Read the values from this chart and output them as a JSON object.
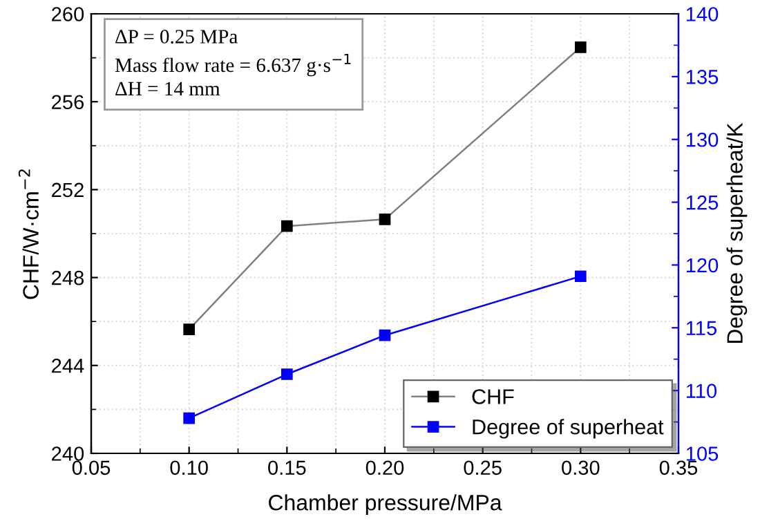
{
  "chart_data": {
    "type": "line",
    "xlabel": "Chamber pressure/MPa",
    "ylabel": "CHF/W·cm$^{−2}$",
    "y2label": "Degree of superheat/K",
    "x": [
      0.1,
      0.15,
      0.2,
      0.3
    ],
    "series": [
      {
        "name": "CHF",
        "color": "#000000",
        "values": [
          245.64,
          250.34,
          250.65,
          258.48
        ]
      },
      {
        "name": "Degree of superheat",
        "color": "#0000ff",
        "axis": "y2",
        "values": [
          107.8,
          111.3,
          114.4,
          119.1
        ]
      }
    ],
    "xlim": [
      0.05,
      0.35
    ],
    "xticks": [
      {
        "value": 0.05,
        "label": "0.05"
      },
      {
        "value": 0.1,
        "label": "0.10"
      },
      {
        "value": 0.15,
        "label": "0.15"
      },
      {
        "value": 0.2,
        "label": "0.20"
      },
      {
        "value": 0.25,
        "label": "0.25"
      },
      {
        "value": 0.3,
        "label": "0.30"
      },
      {
        "value": 0.35,
        "label": "0.35"
      }
    ],
    "ylim": [
      240,
      260
    ],
    "yticks": [
      240,
      244,
      248,
      252,
      256,
      260
    ],
    "y2lim": [
      105,
      140
    ],
    "y2ticks": [
      105,
      110,
      115,
      120,
      125,
      130,
      135,
      140
    ],
    "annotations": [
      "ΔP = 0.25 MPa",
      "Mass flow rate = 6.637 g·s$^{−1}$",
      "ΔH = 14 mm"
    ],
    "grid": true,
    "legend": "bottom right",
    "marker": "square",
    "line_style": "solid"
  }
}
